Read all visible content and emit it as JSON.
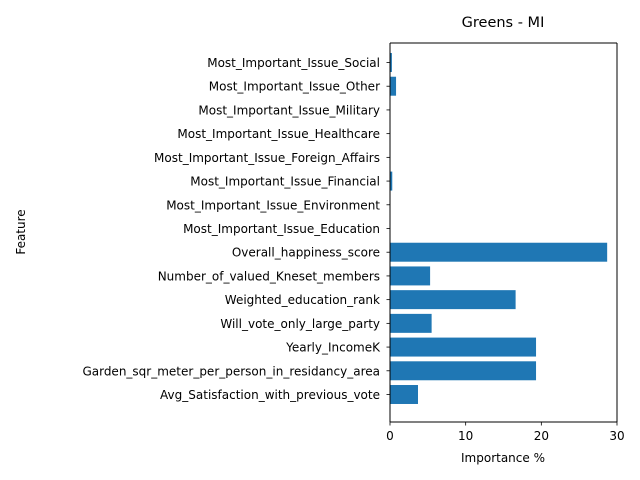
{
  "chart_data": {
    "type": "bar",
    "orientation": "horizontal",
    "title": "Greens - MI",
    "xlabel": "Importance %",
    "ylabel": "Feature",
    "xlim": [
      0,
      30
    ],
    "xticks": [
      0,
      10,
      20,
      30
    ],
    "grid": false,
    "bar_color": "#1f77b4",
    "categories": [
      "Avg_Satisfaction_with_previous_vote",
      "Garden_sqr_meter_per_person_in_residancy_area",
      "Yearly_IncomeK",
      "Will_vote_only_large_party",
      "Weighted_education_rank",
      "Number_of_valued_Kneset_members",
      "Overall_happiness_score",
      "Most_Important_Issue_Education",
      "Most_Important_Issue_Environment",
      "Most_Important_Issue_Financial",
      "Most_Important_Issue_Foreign_Affairs",
      "Most_Important_Issue_Healthcare",
      "Most_Important_Issue_Military",
      "Most_Important_Issue_Other",
      "Most_Important_Issue_Social"
    ],
    "values": [
      3.7,
      19.3,
      19.3,
      5.5,
      16.6,
      5.3,
      28.7,
      0.05,
      0.05,
      0.3,
      0.05,
      0.05,
      0.05,
      0.8,
      0.25
    ]
  }
}
